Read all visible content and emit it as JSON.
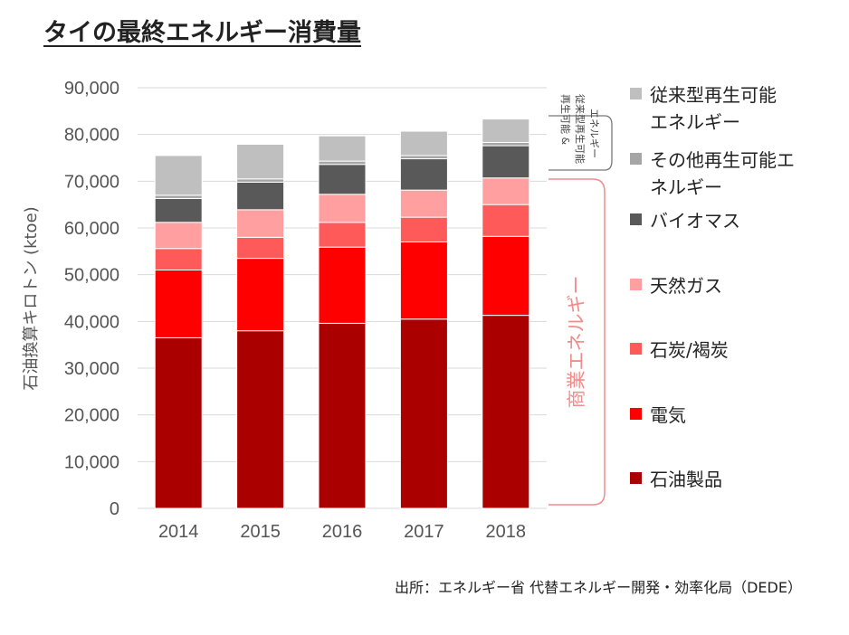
{
  "title": "タイの最終エネルギー消費量",
  "source": "出所：エネルギー省 代替エネルギー開発・効率化局（DEDE）",
  "chart_data": {
    "type": "bar",
    "stacked": true,
    "categories": [
      "2014",
      "2015",
      "2016",
      "2017",
      "2018"
    ],
    "ylabel": "石油換算キロトン (ktoe)",
    "ylim": [
      0,
      90000
    ],
    "yticks": [
      "0",
      "10,000",
      "20,000",
      "30,000",
      "40,000",
      "50,000",
      "60,000",
      "70,000",
      "80,000",
      "90,000"
    ],
    "grid": true,
    "legend_position": "right",
    "series": [
      {
        "name": "石油製品",
        "color": "#aa0000",
        "values": [
          36500,
          38000,
          39600,
          40500,
          41300
        ]
      },
      {
        "name": "電気",
        "color": "#ff0000",
        "values": [
          14500,
          15500,
          16300,
          16500,
          16900
        ]
      },
      {
        "name": "石炭/褐炭",
        "color": "#ff5a5a",
        "values": [
          4600,
          4500,
          5300,
          5300,
          6800
        ]
      },
      {
        "name": "天然ガス",
        "color": "#ff9f9f",
        "values": [
          5600,
          5900,
          6000,
          5800,
          5700
        ]
      },
      {
        "name": "バイオマス",
        "color": "#595959",
        "values": [
          5100,
          5900,
          6400,
          6700,
          6900
        ]
      },
      {
        "name": "その他再生可能エネルギー",
        "color": "#a6a6a6",
        "values": [
          700,
          700,
          700,
          700,
          700
        ]
      },
      {
        "name": "従来型再生可能エネルギー",
        "color": "#bfbfbf",
        "values": [
          8500,
          7400,
          5400,
          5200,
          5000
        ]
      }
    ],
    "legend_lines": [
      [
        "従来型再生可能",
        "エネルギー"
      ],
      [
        "その他再生可能エ",
        "ネルギー"
      ],
      [
        "バイオマス"
      ],
      [
        "天然ガス"
      ],
      [
        "石炭/褐炭"
      ],
      [
        "電気"
      ],
      [
        "石油製品"
      ]
    ],
    "brackets": {
      "renewable_line1": "再生可能 &",
      "renewable_line2": "従来型再生可能",
      "renewable_line3": "エネルギー",
      "commercial": "商業エネルギー"
    }
  }
}
